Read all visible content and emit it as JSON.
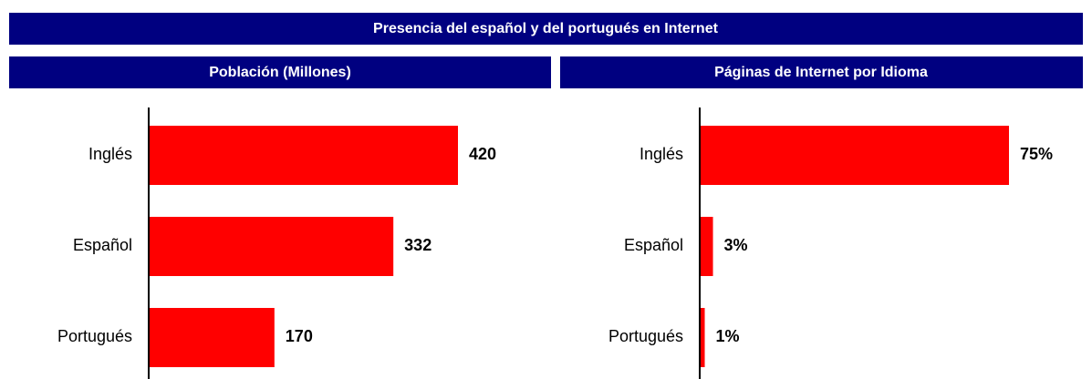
{
  "title": "Presencia del español y del portugués en Internet",
  "chart_data": [
    {
      "type": "bar",
      "orientation": "horizontal",
      "title": "Población (Millones)",
      "categories": [
        "Inglés",
        "Español",
        "Portugués"
      ],
      "values": [
        420,
        332,
        170
      ],
      "color": "#ff0000"
    },
    {
      "type": "bar",
      "orientation": "horizontal",
      "title": "Páginas de Internet por Idioma",
      "categories": [
        "Inglés",
        "Español",
        "Portugués"
      ],
      "values": [
        75,
        3,
        1
      ],
      "value_labels": [
        "75%",
        "3%",
        "1%"
      ],
      "color": "#ff0000"
    }
  ]
}
